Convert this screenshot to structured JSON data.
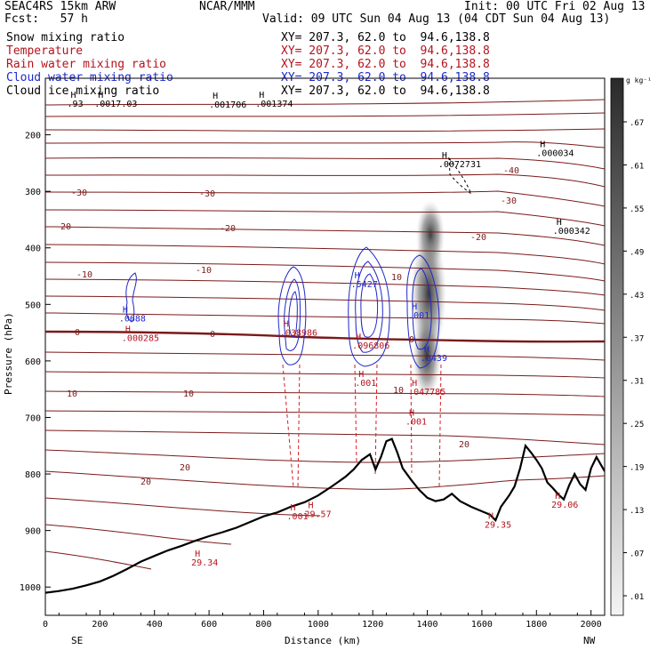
{
  "header": {
    "model": "SEAC4RS 15km ARW",
    "forecast": "Fcst:   57 h",
    "org": "NCAR/MMM",
    "init": "Init: 00 UTC Fri 02 Aug 13",
    "valid": "Valid: 09 UTC Sun 04 Aug 13 (04 CDT Sun 04 Aug 13)"
  },
  "fields": [
    {
      "label": "Snow mixing ratio",
      "color": "#000000",
      "xy": "XY= 207.3, 62.0 to  94.6,138.8"
    },
    {
      "label": "Temperature",
      "color": "#b4141e",
      "xy": "XY= 207.3, 62.0 to  94.6,138.8"
    },
    {
      "label": "Rain water mixing ratio",
      "color": "#b4141e",
      "xy": "XY= 207.3, 62.0 to  94.6,138.8"
    },
    {
      "label": "Cloud water mixing ratio",
      "color": "#1e28c8",
      "xy": "XY= 207.3, 62.0 to  94.6,138.8"
    },
    {
      "label": "Cloud ice mixing ratio",
      "color": "#000000",
      "xy": "XY= 207.3, 62.0 to  94.6,138.8"
    }
  ],
  "chart_data": {
    "type": "cross-section",
    "xlabel": "Distance (km)",
    "ylabel": "Pressure (hPa)",
    "xlim": [
      0,
      2050
    ],
    "ylim": [
      1050,
      100
    ],
    "x_ticks": [
      0,
      200,
      400,
      600,
      800,
      1000,
      1200,
      1400,
      1600,
      1800,
      2000
    ],
    "x_tick_labels": [
      "0",
      "200",
      "400",
      "600",
      "800",
      "1000",
      "1200",
      "1400",
      "1600",
      "1800",
      "2000"
    ],
    "y_ticks": [
      200,
      300,
      400,
      500,
      600,
      700,
      800,
      900,
      1000
    ],
    "y_tick_labels": [
      "200",
      "300",
      "400",
      "500",
      "600",
      "700",
      "800",
      "900",
      "1000"
    ],
    "end_labels": {
      "left": "SE",
      "right": "NW"
    },
    "colorbar": {
      "unit": "g kg⁻¹",
      "levels": [
        ".01",
        ".07",
        ".13",
        ".19",
        ".25",
        ".31",
        ".37",
        ".43",
        ".49",
        ".55",
        ".61",
        ".67"
      ]
    },
    "terrain": [
      [
        0,
        1010
      ],
      [
        50,
        1007
      ],
      [
        100,
        1003
      ],
      [
        150,
        997
      ],
      [
        200,
        990
      ],
      [
        250,
        980
      ],
      [
        300,
        968
      ],
      [
        350,
        955
      ],
      [
        400,
        945
      ],
      [
        450,
        935
      ],
      [
        500,
        927
      ],
      [
        550,
        918
      ],
      [
        600,
        910
      ],
      [
        650,
        903
      ],
      [
        700,
        895
      ],
      [
        750,
        885
      ],
      [
        800,
        875
      ],
      [
        850,
        868
      ],
      [
        900,
        858
      ],
      [
        950,
        850
      ],
      [
        1000,
        838
      ],
      [
        1050,
        822
      ],
      [
        1100,
        805
      ],
      [
        1130,
        792
      ],
      [
        1160,
        775
      ],
      [
        1190,
        765
      ],
      [
        1210,
        792
      ],
      [
        1230,
        770
      ],
      [
        1250,
        742
      ],
      [
        1270,
        738
      ],
      [
        1290,
        762
      ],
      [
        1310,
        790
      ],
      [
        1340,
        810
      ],
      [
        1370,
        828
      ],
      [
        1400,
        842
      ],
      [
        1430,
        848
      ],
      [
        1460,
        845
      ],
      [
        1490,
        835
      ],
      [
        1520,
        848
      ],
      [
        1560,
        858
      ],
      [
        1600,
        866
      ],
      [
        1630,
        872
      ],
      [
        1650,
        882
      ],
      [
        1670,
        858
      ],
      [
        1700,
        838
      ],
      [
        1720,
        822
      ],
      [
        1740,
        790
      ],
      [
        1760,
        750
      ],
      [
        1780,
        762
      ],
      [
        1800,
        775
      ],
      [
        1820,
        790
      ],
      [
        1840,
        815
      ],
      [
        1860,
        825
      ],
      [
        1880,
        836
      ],
      [
        1900,
        845
      ],
      [
        1920,
        820
      ],
      [
        1940,
        800
      ],
      [
        1960,
        818
      ],
      [
        1980,
        828
      ],
      [
        2000,
        790
      ],
      [
        2020,
        770
      ],
      [
        2050,
        795
      ]
    ],
    "labels_black": [
      {
        "x": 80,
        "p": 150,
        "text": ".93"
      },
      {
        "x": 180,
        "p": 150,
        "text": ".0017.03"
      },
      {
        "x": 600,
        "p": 152,
        "text": ".001706"
      },
      {
        "x": 770,
        "p": 150,
        "text": ".001374"
      },
      {
        "x": 1440,
        "p": 257,
        "text": ".0072731"
      },
      {
        "x": 1800,
        "p": 238,
        "text": ".000034"
      },
      {
        "x": 1860,
        "p": 375,
        "text": ".000342"
      }
    ],
    "labels_red": [
      {
        "x": 280,
        "p": 565,
        "text": ".000285"
      },
      {
        "x": 860,
        "p": 555,
        "text": ".038986"
      },
      {
        "x": 1125,
        "p": 578,
        "text": ".096806"
      },
      {
        "x": 1135,
        "p": 644,
        "text": ".001"
      },
      {
        "x": 1330,
        "p": 660,
        "text": ".047785"
      },
      {
        "x": 1320,
        "p": 713,
        "text": ".001"
      },
      {
        "x": 885,
        "p": 880,
        "text": ".001"
      },
      {
        "x": 950,
        "p": 876,
        "text": "29.57"
      },
      {
        "x": 535,
        "p": 962,
        "text": "29.34"
      },
      {
        "x": 1610,
        "p": 895,
        "text": "29.35"
      },
      {
        "x": 1855,
        "p": 860,
        "text": "29.06"
      }
    ],
    "labels_blue": [
      {
        "x": 270,
        "p": 530,
        "text": ".0688"
      },
      {
        "x": 1120,
        "p": 470,
        "text": ".5427"
      },
      {
        "x": 1330,
        "p": 525,
        "text": ".001"
      },
      {
        "x": 1375,
        "p": 600,
        "text": ".0439"
      }
    ],
    "temperature_isotherms": [
      "-40",
      "-30",
      "-20",
      "-10",
      "0",
      "10",
      "20"
    ]
  }
}
